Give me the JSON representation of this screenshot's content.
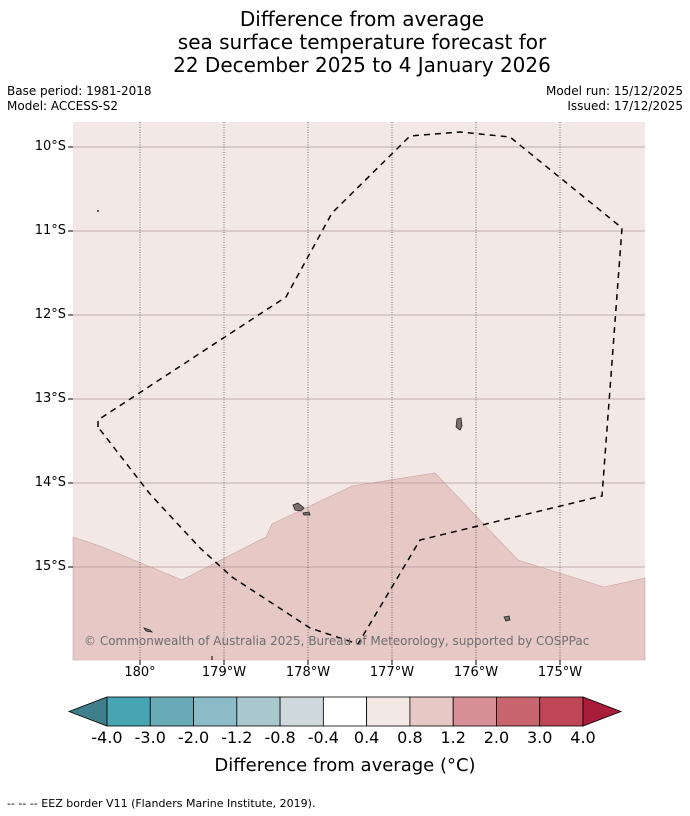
{
  "title": {
    "line1": "Difference from average",
    "line2": "sea surface temperature forecast for",
    "line3": "22 December 2025 to 4 January 2026"
  },
  "meta": {
    "base_period": "Base period: 1981-2018",
    "model": "Model: ACCESS-S2",
    "model_run": "Model run: 15/12/2025",
    "issued": "Issued: 17/12/2025"
  },
  "map": {
    "lat_labels": [
      "10°S",
      "11°S",
      "12°S",
      "13°S",
      "14°S",
      "15°S"
    ],
    "lon_labels": [
      "180°",
      "179°W",
      "178°W",
      "177°W",
      "176°W",
      "175°W"
    ],
    "lon_range": [
      179.2,
      -174.0
    ],
    "lat_range": [
      -9.7,
      -16.1
    ],
    "copyright": "© Commonwealth of Australia 2025, Bureau of Meteorology, supported by COSPPac",
    "regions": [
      {
        "anomaly_bin": "0.4 to 0.8",
        "color": "#f4e8e6",
        "location": "north"
      },
      {
        "anomaly_bin": "0.8 to 1.2",
        "color": "#e6c8c4",
        "location": "south"
      }
    ]
  },
  "colorbar": {
    "ticks": [
      "-4.0",
      "-3.0",
      "-2.0",
      "-1.2",
      "-0.8",
      "-0.4",
      "0.4",
      "0.8",
      "1.2",
      "2.0",
      "3.0",
      "4.0"
    ],
    "colors": [
      "#3e7f8b",
      "#47a5b3",
      "#6aabb8",
      "#8cbcc7",
      "#a9c8ce",
      "#cfd8da",
      "#ffffff",
      "#f4e8e6",
      "#e6c8c4",
      "#d68f96",
      "#c9656f",
      "#be4657",
      "#a91d3b"
    ],
    "label": "Difference from average (°C)"
  },
  "footer": {
    "legend_text": "--  --  -- EEZ border V11 (Flanders Marine Institute, 2019)."
  }
}
